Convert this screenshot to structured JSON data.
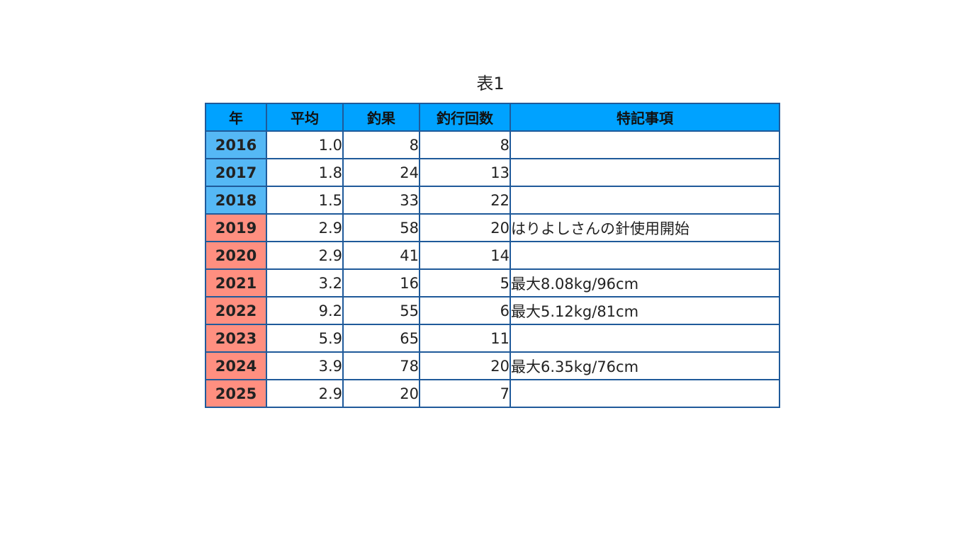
{
  "caption": "表1",
  "colors": {
    "header_bg": "#00a2ff",
    "year_early_bg": "#55b8f5",
    "year_late_bg": "#ff8f80",
    "border": "#1f5a9a"
  },
  "table": {
    "headers": [
      "年",
      "平均",
      "釣果",
      "釣行回数",
      "特記事項"
    ],
    "rows": [
      {
        "year": "2016",
        "average": "1.0",
        "catch": "8",
        "trips": "8",
        "note": "",
        "year_color": "#55b8f5"
      },
      {
        "year": "2017",
        "average": "1.8",
        "catch": "24",
        "trips": "13",
        "note": "",
        "year_color": "#55b8f5"
      },
      {
        "year": "2018",
        "average": "1.5",
        "catch": "33",
        "trips": "22",
        "note": "",
        "year_color": "#55b8f5"
      },
      {
        "year": "2019",
        "average": "2.9",
        "catch": "58",
        "trips": "20",
        "note": "はりよしさんの針使用開始",
        "year_color": "#ff8f80"
      },
      {
        "year": "2020",
        "average": "2.9",
        "catch": "41",
        "trips": "14",
        "note": "",
        "year_color": "#ff8f80"
      },
      {
        "year": "2021",
        "average": "3.2",
        "catch": "16",
        "trips": "5",
        "note": "最大8.08kg/96cm",
        "year_color": "#ff8f80"
      },
      {
        "year": "2022",
        "average": "9.2",
        "catch": "55",
        "trips": "6",
        "note": "最大5.12kg/81cm",
        "year_color": "#ff8f80"
      },
      {
        "year": "2023",
        "average": "5.9",
        "catch": "65",
        "trips": "11",
        "note": "",
        "year_color": "#ff8f80"
      },
      {
        "year": "2024",
        "average": "3.9",
        "catch": "78",
        "trips": "20",
        "note": "最大6.35kg/76cm",
        "year_color": "#ff8f80"
      },
      {
        "year": "2025",
        "average": "2.9",
        "catch": "20",
        "trips": "7",
        "note": "",
        "year_color": "#ff8f80"
      }
    ]
  }
}
